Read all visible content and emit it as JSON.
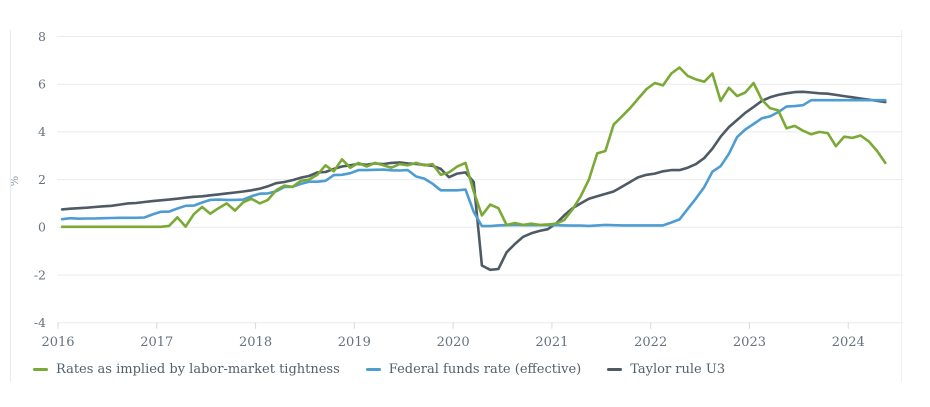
{
  "chart_data": {
    "type": "line",
    "title": "",
    "ylabel": "%",
    "x_start": "2016-01",
    "x_end": "2024-05",
    "x_frequency": "monthly",
    "x_tick_labels": [
      "2016",
      "2017",
      "2018",
      "2019",
      "2020",
      "2021",
      "2022",
      "2023",
      "2024"
    ],
    "y_tick_labels": [
      "8",
      "6",
      "4",
      "2",
      "0",
      "-2",
      "-4"
    ],
    "yticks": [
      8,
      6,
      4,
      2,
      0,
      -2,
      -4
    ],
    "ylim": [
      -4,
      8
    ],
    "grid": "horizontal",
    "legend_position": "bottom-left",
    "colors": {
      "grid": "#e9ebec",
      "tick": "#d5d9dc",
      "axis_text": "#66727e",
      "legend_text": "#52606b"
    },
    "series": [
      {
        "name": "Taylor rule U3",
        "color": "#4e5a66",
        "values": [
          0.75,
          0.78,
          0.8,
          0.82,
          0.85,
          0.88,
          0.9,
          0.95,
          1.0,
          1.02,
          1.06,
          1.1,
          1.13,
          1.16,
          1.2,
          1.24,
          1.28,
          1.3,
          1.34,
          1.38,
          1.42,
          1.46,
          1.5,
          1.55,
          1.62,
          1.72,
          1.85,
          1.9,
          1.98,
          2.08,
          2.15,
          2.3,
          2.32,
          2.45,
          2.55,
          2.6,
          2.66,
          2.62,
          2.68,
          2.65,
          2.7,
          2.72,
          2.68,
          2.66,
          2.62,
          2.58,
          2.45,
          2.1,
          2.25,
          2.3,
          1.9,
          -1.6,
          -1.78,
          -1.75,
          -1.05,
          -0.7,
          -0.4,
          -0.25,
          -0.15,
          -0.08,
          0.15,
          0.5,
          0.8,
          1.0,
          1.2,
          1.3,
          1.4,
          1.5,
          1.7,
          1.9,
          2.1,
          2.2,
          2.25,
          2.35,
          2.4,
          2.4,
          2.5,
          2.65,
          2.9,
          3.3,
          3.8,
          4.2,
          4.5,
          4.8,
          5.05,
          5.3,
          5.45,
          5.55,
          5.62,
          5.67,
          5.68,
          5.65,
          5.62,
          5.6,
          5.55,
          5.5,
          5.45,
          5.4,
          5.35,
          5.3,
          5.25
        ]
      },
      {
        "name": "Federal funds rate (effective)",
        "color": "#4e9cd2",
        "values": [
          0.34,
          0.38,
          0.36,
          0.37,
          0.37,
          0.38,
          0.39,
          0.4,
          0.4,
          0.4,
          0.41,
          0.54,
          0.65,
          0.66,
          0.79,
          0.9,
          0.91,
          1.04,
          1.15,
          1.16,
          1.15,
          1.15,
          1.16,
          1.3,
          1.41,
          1.42,
          1.51,
          1.69,
          1.7,
          1.82,
          1.91,
          1.91,
          1.95,
          2.19,
          2.2,
          2.27,
          2.4,
          2.4,
          2.41,
          2.42,
          2.39,
          2.38,
          2.4,
          2.13,
          2.04,
          1.83,
          1.55,
          1.55,
          1.55,
          1.58,
          0.65,
          0.05,
          0.05,
          0.08,
          0.09,
          0.1,
          0.09,
          0.09,
          0.09,
          0.09,
          0.09,
          0.08,
          0.07,
          0.07,
          0.06,
          0.08,
          0.1,
          0.09,
          0.08,
          0.08,
          0.08,
          0.08,
          0.08,
          0.08,
          0.2,
          0.33,
          0.77,
          1.21,
          1.68,
          2.33,
          2.56,
          3.08,
          3.78,
          4.1,
          4.33,
          4.57,
          4.65,
          4.83,
          5.06,
          5.08,
          5.12,
          5.33,
          5.33,
          5.33,
          5.33,
          5.33,
          5.33,
          5.33,
          5.33,
          5.33,
          5.33
        ]
      },
      {
        "name": "Rates as implied by labor-market tightness",
        "color": "#7aaa35",
        "values": [
          0.02,
          0.02,
          0.02,
          0.02,
          0.02,
          0.02,
          0.02,
          0.02,
          0.02,
          0.02,
          0.02,
          0.02,
          0.02,
          0.06,
          0.42,
          0.03,
          0.55,
          0.85,
          0.57,
          0.8,
          1.0,
          0.7,
          1.05,
          1.2,
          1.0,
          1.15,
          1.55,
          1.75,
          1.7,
          1.95,
          2.0,
          2.2,
          2.6,
          2.35,
          2.85,
          2.5,
          2.7,
          2.55,
          2.7,
          2.6,
          2.5,
          2.65,
          2.6,
          2.7,
          2.6,
          2.65,
          2.2,
          2.3,
          2.55,
          2.7,
          1.5,
          0.5,
          0.95,
          0.8,
          0.1,
          0.18,
          0.1,
          0.15,
          0.1,
          0.12,
          0.15,
          0.3,
          0.75,
          1.3,
          2.0,
          3.1,
          3.2,
          4.3,
          4.65,
          5.0,
          5.4,
          5.8,
          6.05,
          5.95,
          6.45,
          6.7,
          6.35,
          6.2,
          6.1,
          6.45,
          5.3,
          5.85,
          5.5,
          5.65,
          6.05,
          5.35,
          5.0,
          4.9,
          4.15,
          4.25,
          4.05,
          3.9,
          4.0,
          3.95,
          3.4,
          3.8,
          3.75,
          3.85,
          3.6,
          3.2,
          2.7
        ]
      }
    ],
    "legend_order": [
      2,
      1,
      0
    ]
  }
}
